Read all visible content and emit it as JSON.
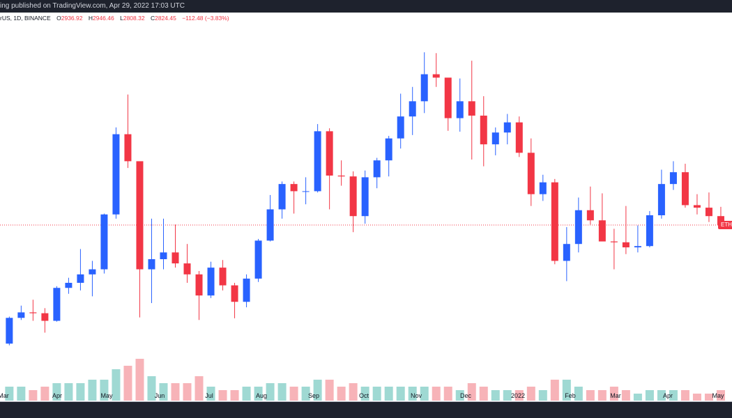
{
  "header": {
    "published_text": "ing published on TradingView.com, Apr 29, 2022 17:03 UTC"
  },
  "legend": {
    "symbol": "rUS, 1D, BINANCE",
    "open_label": "O",
    "open": "2936.92",
    "high_label": "H",
    "high": "2946.46",
    "low_label": "L",
    "low": "2808.32",
    "close_label": "C",
    "close": "2824.45",
    "change": "−112.48 (−3.83%)"
  },
  "price_label": "ETH",
  "colors": {
    "up": "#2962ff",
    "down": "#f23645",
    "vol_up": "#9fd9d3",
    "vol_down": "#f7b3b8",
    "topbar": "#1e222d"
  },
  "chart_data": {
    "type": "candlestick",
    "interval_note_shown": "1D",
    "x_tick_labels": [
      "Mar",
      "Apr",
      "May",
      "Jun",
      "Jul",
      "Aug",
      "Sep",
      "Oct",
      "Nov",
      "Dec",
      "2022",
      "Feb",
      "Mar",
      "Apr",
      "May"
    ],
    "last_price": 2824.45,
    "grid": false,
    "week_start": [
      "2021-03-01",
      "2021-03-08",
      "2021-03-15",
      "2021-03-22",
      "2021-03-29",
      "2021-04-05",
      "2021-04-12",
      "2021-04-19",
      "2021-04-26",
      "2021-05-03",
      "2021-05-10",
      "2021-05-17",
      "2021-05-24",
      "2021-05-31",
      "2021-06-07",
      "2021-06-14",
      "2021-06-21",
      "2021-06-28",
      "2021-07-05",
      "2021-07-12",
      "2021-07-19",
      "2021-07-26",
      "2021-08-02",
      "2021-08-09",
      "2021-08-16",
      "2021-08-23",
      "2021-08-30",
      "2021-09-06",
      "2021-09-13",
      "2021-09-20",
      "2021-09-27",
      "2021-10-04",
      "2021-10-11",
      "2021-10-18",
      "2021-10-25",
      "2021-11-01",
      "2021-11-08",
      "2021-11-15",
      "2021-11-22",
      "2021-11-29",
      "2021-12-06",
      "2021-12-13",
      "2021-12-20",
      "2021-12-27",
      "2022-01-03",
      "2022-01-10",
      "2022-01-17",
      "2022-01-24",
      "2022-01-31",
      "2022-02-07",
      "2022-02-14",
      "2022-02-21",
      "2022-02-28",
      "2022-03-07",
      "2022-03-14",
      "2022-03-21",
      "2022-03-28",
      "2022-04-04",
      "2022-04-11",
      "2022-04-18",
      "2022-04-25"
    ],
    "close": [
      1725,
      1790,
      1780,
      1690,
      2080,
      2140,
      2240,
      2300,
      2950,
      3900,
      3580,
      2300,
      2420,
      2500,
      2370,
      2240,
      1990,
      2320,
      2110,
      1915,
      2190,
      2640,
      3010,
      3310,
      3225,
      3225,
      3935,
      3410,
      3400,
      2930,
      3390,
      3590,
      3850,
      4110,
      4290,
      4610,
      4570,
      4090,
      4290,
      4120,
      3780,
      3920,
      4040,
      3680,
      3190,
      3330,
      2400,
      2600,
      3000,
      2880,
      2630,
      2620,
      2560,
      2575,
      2940,
      3310,
      3450,
      3060,
      3030,
      2930,
      2824.45
    ],
    "open0": 1420,
    "high": [
      1740,
      1870,
      1940,
      1840,
      2100,
      2200,
      2540,
      2400,
      2960,
      3980,
      4370,
      3440,
      2900,
      2900,
      2830,
      2600,
      2280,
      2390,
      2410,
      2140,
      2240,
      2660,
      3180,
      3340,
      3340,
      3390,
      4020,
      3970,
      3590,
      3460,
      3470,
      3620,
      3880,
      4380,
      4460,
      4870,
      4860,
      4560,
      4560,
      4770,
      4350,
      3980,
      4140,
      4110,
      3850,
      3420,
      3370,
      2800,
      3150,
      3280,
      3200,
      2780,
      3050,
      2820,
      2990,
      3480,
      3580,
      3550,
      3190,
      3210,
      3040
    ],
    "low": [
      1400,
      1700,
      1690,
      1550,
      1680,
      2010,
      2050,
      1980,
      2250,
      2900,
      3500,
      1730,
      1900,
      2300,
      2320,
      2140,
      1700,
      1960,
      2050,
      1720,
      1850,
      2150,
      2630,
      2900,
      2960,
      3070,
      3210,
      3010,
      3290,
      2740,
      2840,
      3260,
      3400,
      3730,
      3890,
      4150,
      4460,
      3940,
      3930,
      3600,
      3520,
      3650,
      3780,
      3630,
      3050,
      3110,
      2360,
      2160,
      2500,
      2830,
      2640,
      2300,
      2480,
      2500,
      2560,
      2900,
      3240,
      3030,
      2950,
      2860,
      2790
    ],
    "volume_relative": [
      4,
      4,
      3,
      4,
      5,
      5,
      5,
      6,
      6,
      9,
      10,
      12,
      7,
      5,
      5,
      5,
      7,
      4,
      3,
      3,
      4,
      4,
      5,
      5,
      4,
      4,
      6,
      6,
      4,
      5,
      4,
      4,
      4,
      4,
      4,
      4,
      4,
      4,
      3,
      5,
      4,
      3,
      3,
      3,
      4,
      3,
      6,
      6,
      4,
      3,
      3,
      4,
      3,
      2,
      3,
      3,
      3,
      3,
      2,
      2,
      3
    ]
  }
}
